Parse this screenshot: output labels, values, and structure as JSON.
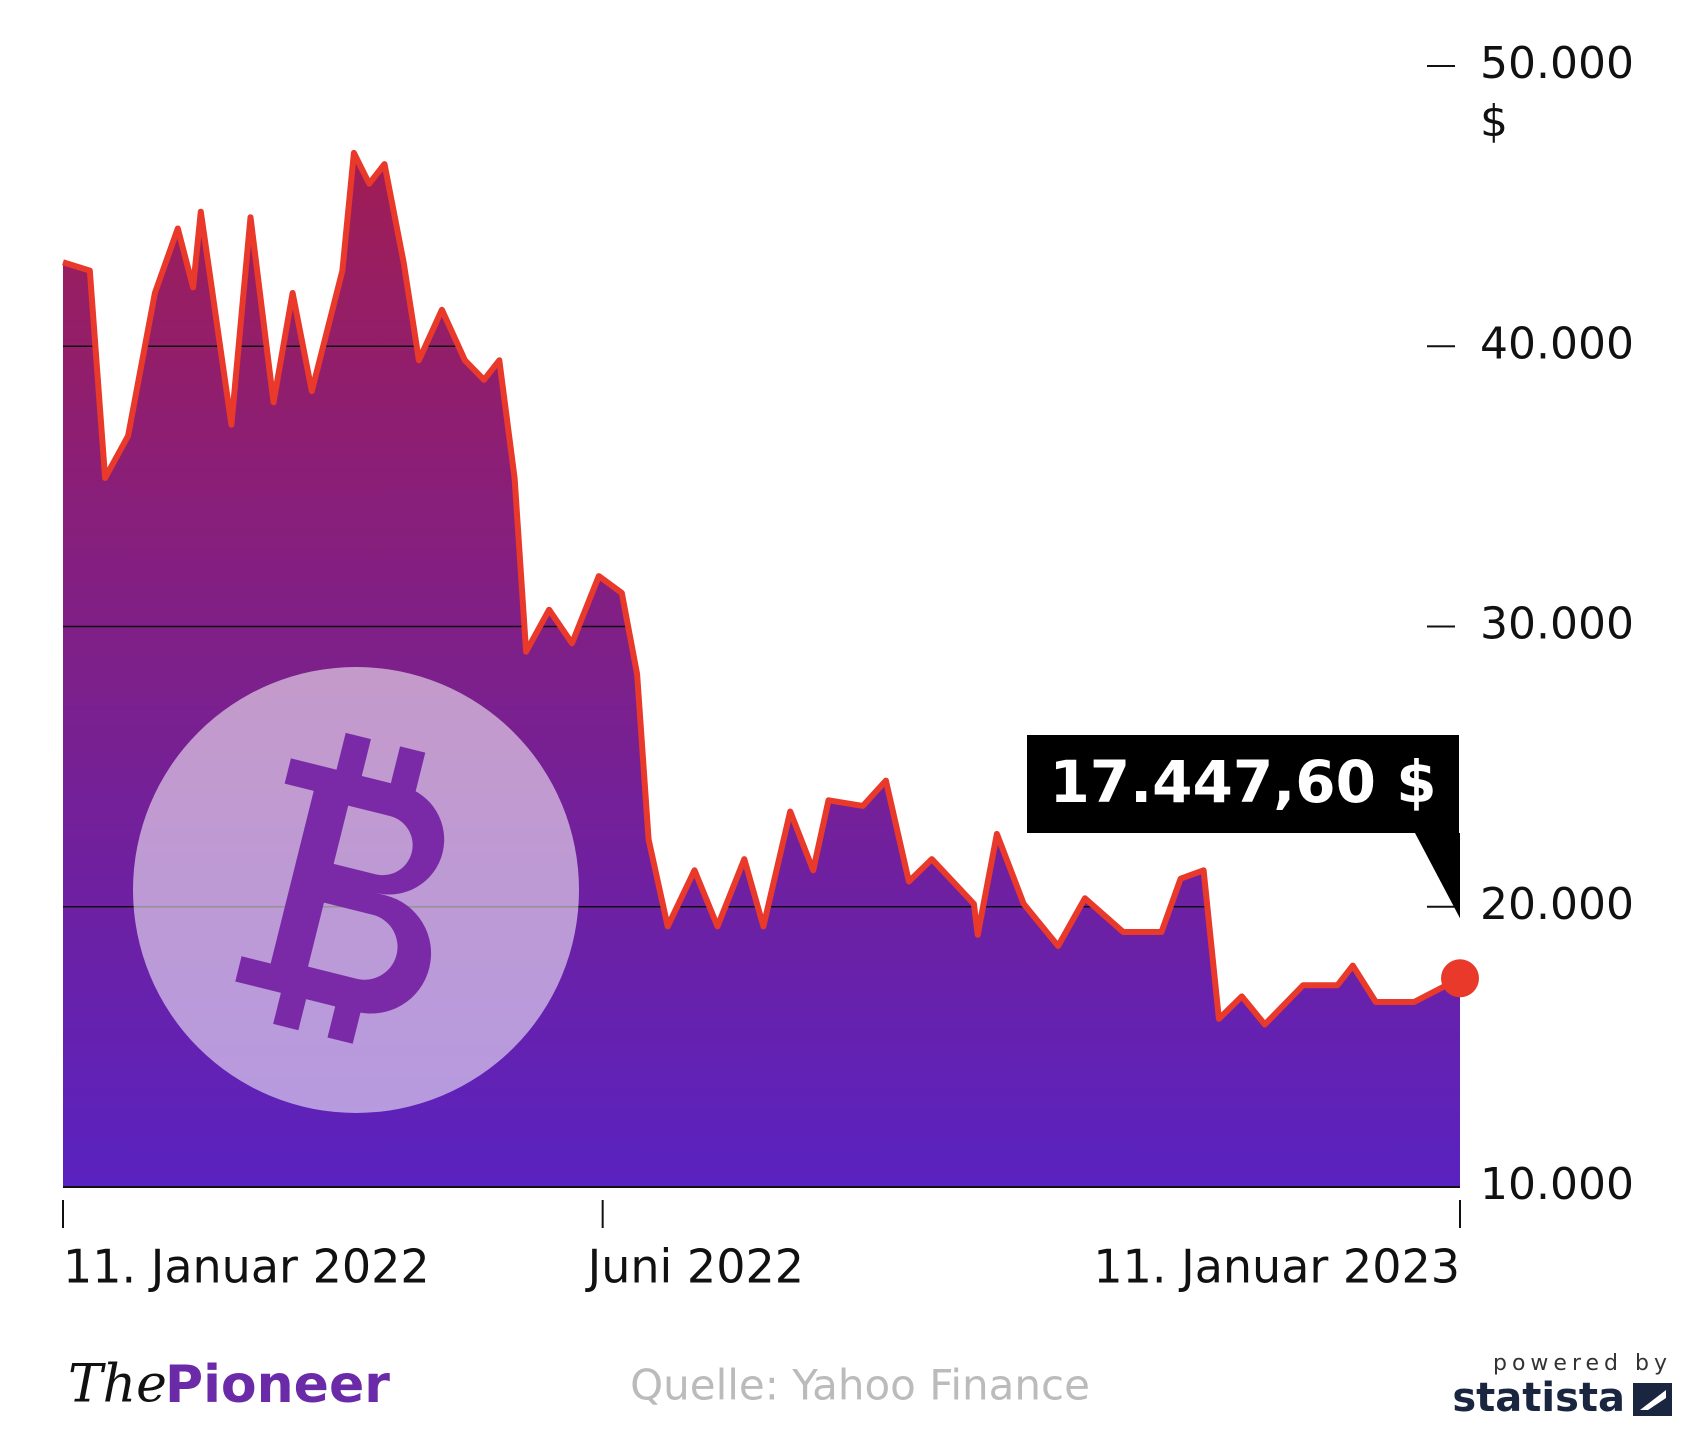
{
  "chart_data": {
    "type": "area-line",
    "x": [
      "2022-01-11",
      "2022-01-18",
      "2022-01-22",
      "2022-01-28",
      "2022-02-04",
      "2022-02-10",
      "2022-02-14",
      "2022-02-16",
      "2022-02-24",
      "2022-03-01",
      "2022-03-07",
      "2022-03-12",
      "2022-03-17",
      "2022-03-25",
      "2022-03-28",
      "2022-04-01",
      "2022-04-05",
      "2022-04-10",
      "2022-04-14",
      "2022-04-20",
      "2022-04-26",
      "2022-05-01",
      "2022-05-05",
      "2022-05-09",
      "2022-05-12",
      "2022-05-18",
      "2022-05-24",
      "2022-05-31",
      "2022-06-06",
      "2022-06-10",
      "2022-06-13",
      "2022-06-18",
      "2022-06-25",
      "2022-07-01",
      "2022-07-08",
      "2022-07-13",
      "2022-07-20",
      "2022-07-26",
      "2022-07-30",
      "2022-08-08",
      "2022-08-14",
      "2022-08-20",
      "2022-08-26",
      "2022-09-06",
      "2022-09-07",
      "2022-09-12",
      "2022-09-19",
      "2022-09-28",
      "2022-10-05",
      "2022-10-15",
      "2022-10-25",
      "2022-10-30",
      "2022-11-05",
      "2022-11-09",
      "2022-11-15",
      "2022-11-21",
      "2022-12-01",
      "2022-12-10",
      "2022-12-14",
      "2022-12-20",
      "2022-12-30",
      "2023-01-11"
    ],
    "values": [
      43000,
      42700,
      35300,
      36800,
      41900,
      44200,
      42100,
      44800,
      37200,
      44600,
      38000,
      41900,
      38400,
      42700,
      46900,
      45800,
      46500,
      43000,
      39500,
      41300,
      39500,
      38800,
      39500,
      35300,
      29100,
      30600,
      29400,
      31800,
      31200,
      28300,
      22400,
      19300,
      21300,
      19300,
      21700,
      19300,
      23400,
      21300,
      23800,
      23600,
      24500,
      20900,
      21700,
      20100,
      19000,
      22600,
      20100,
      18600,
      20300,
      19100,
      19100,
      21000,
      21300,
      16000,
      16800,
      15800,
      17200,
      17200,
      17900,
      16600,
      16600,
      17447.6
    ],
    "color": "#e8392a",
    "xlim": [
      "2022-01-11",
      "2023-01-11"
    ],
    "xticks": [
      {
        "value": "2022-01-11",
        "label": "11. Januar 2022"
      },
      {
        "value": "2022-06",
        "label": "Juni 2022"
      },
      {
        "value": "2023-01-11",
        "label": "11. Januar 2023"
      }
    ],
    "ylim": [
      10000,
      50000
    ],
    "yticks": [
      {
        "value": 10000,
        "label": "10.000"
      },
      {
        "value": 20000,
        "label": "20.000"
      },
      {
        "value": 30000,
        "label": "30.000"
      },
      {
        "value": 40000,
        "label": "40.000"
      },
      {
        "value": 50000,
        "label": "50.000"
      }
    ],
    "y_unit": "$",
    "grid": true,
    "annotation": "17.447,60 $"
  },
  "footer": {
    "brand_the": "The",
    "brand_pioneer": "Pioneer",
    "source": "Quelle: Yahoo Finance",
    "powered_by": "powered by",
    "statista": "statista"
  }
}
